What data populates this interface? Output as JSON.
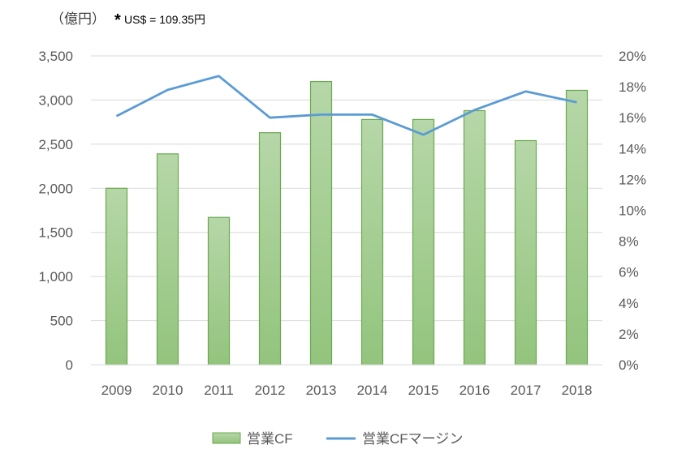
{
  "header": {
    "unit_label": "（億円）",
    "note_star": "*",
    "note_text": "US$ = 109.35円"
  },
  "colors": {
    "bar_fill_top": "#b6d7a8",
    "bar_fill_bottom": "#93c47d",
    "bar_stroke": "#6aa84f",
    "line": "#5b9bd5",
    "grid": "#d9d9d9",
    "tick_text": "#595959"
  },
  "chart_data": {
    "type": "bar",
    "categories": [
      "2009",
      "2010",
      "2011",
      "2012",
      "2013",
      "2014",
      "2015",
      "2016",
      "2017",
      "2018"
    ],
    "series": [
      {
        "name": "営業CF",
        "type": "bar",
        "axis": "left",
        "values": [
          2000,
          2390,
          1670,
          2630,
          3210,
          2780,
          2780,
          2880,
          2540,
          3110
        ]
      },
      {
        "name": "営業CFマージン",
        "type": "line",
        "axis": "right",
        "values": [
          16.1,
          17.8,
          18.7,
          16.0,
          16.2,
          16.2,
          14.9,
          16.5,
          17.7,
          17.0
        ]
      }
    ],
    "y_left": {
      "lim": [
        0,
        3500
      ],
      "ticks": [
        "0",
        "500",
        "1,000",
        "1,500",
        "2,000",
        "2,500",
        "3,000",
        "3,500"
      ]
    },
    "y_right": {
      "lim": [
        0,
        20
      ],
      "ticks": [
        "0%",
        "2%",
        "4%",
        "6%",
        "8%",
        "10%",
        "12%",
        "14%",
        "16%",
        "18%",
        "20%"
      ]
    },
    "grid": true,
    "legend_position": "bottom"
  }
}
